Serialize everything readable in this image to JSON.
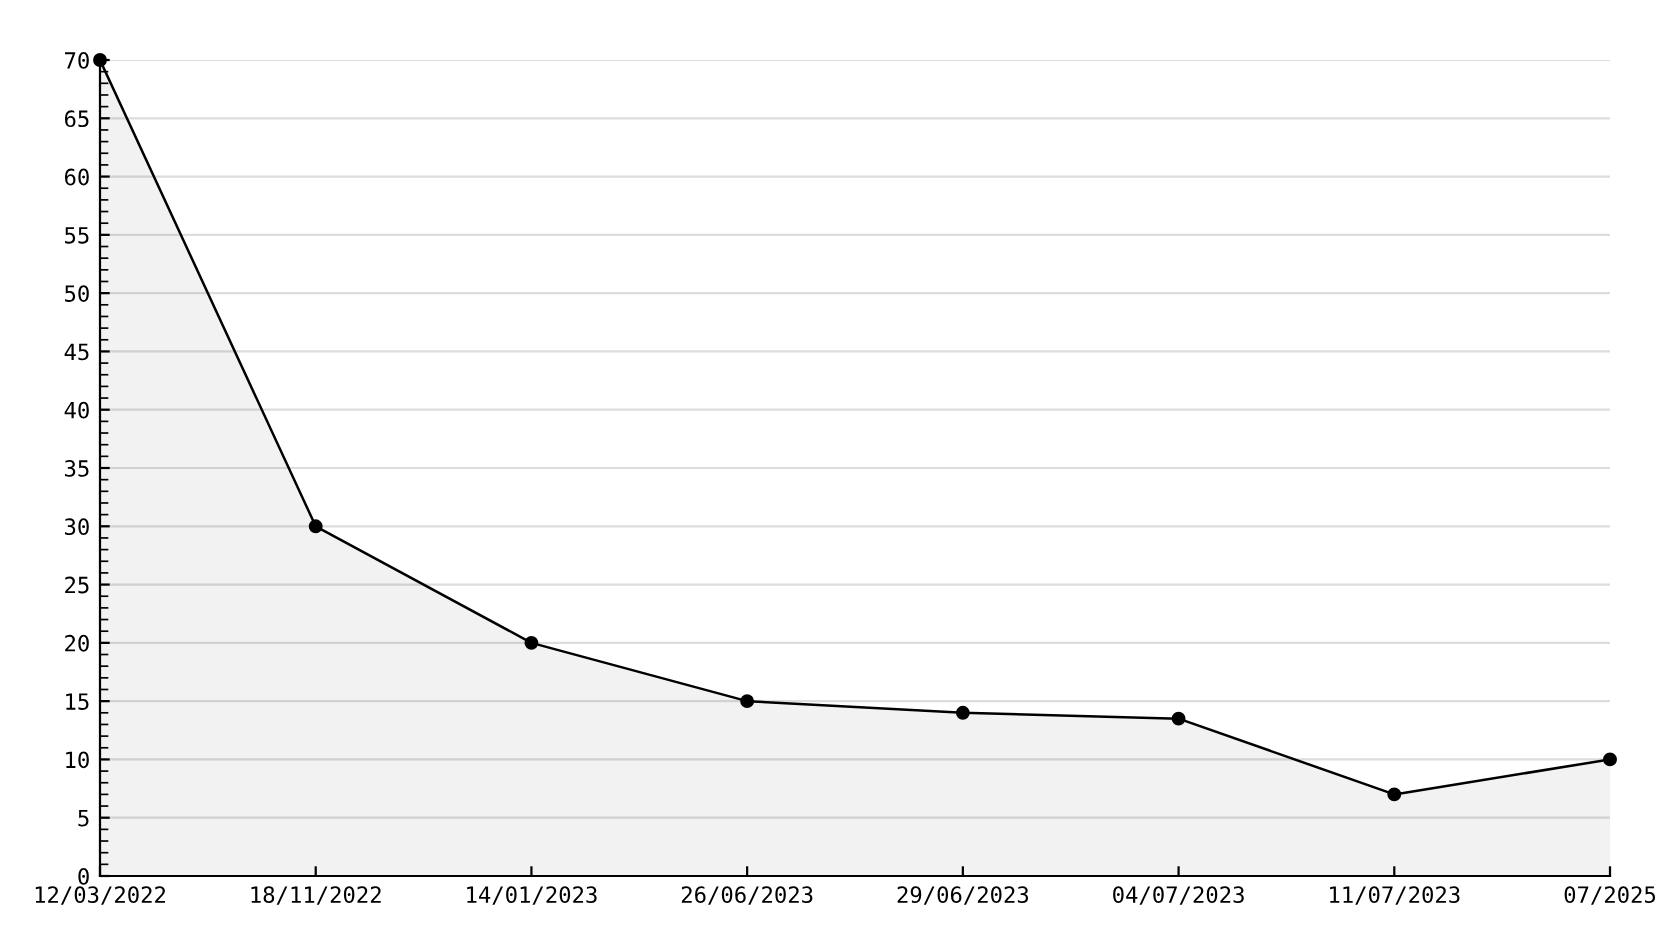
{
  "chart_data": {
    "type": "area",
    "categories": [
      "12/03/2022",
      "18/11/2022",
      "14/01/2023",
      "26/06/2023",
      "29/06/2023",
      "04/07/2023",
      "11/07/2023",
      "07/2025"
    ],
    "series": [
      {
        "color": "#000000",
        "values": [
          70,
          30,
          20,
          15,
          14,
          13.5,
          7,
          10
        ]
      }
    ],
    "ylim": [
      0,
      70
    ],
    "yticks": [
      0,
      5,
      10,
      15,
      20,
      25,
      30,
      35,
      40,
      45,
      50,
      55,
      60,
      65,
      70
    ],
    "grid": "y",
    "marker": "circle",
    "line_style": "solid",
    "legend": false
  }
}
